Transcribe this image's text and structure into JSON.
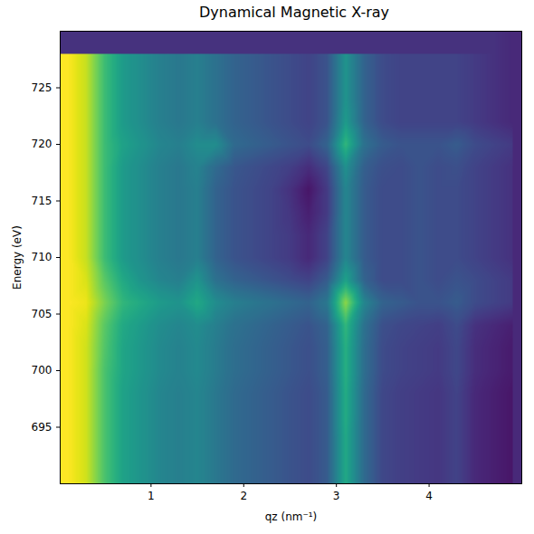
{
  "chart_data": {
    "type": "heatmap",
    "title": "Dynamical Magnetic X-ray",
    "x_label": "qz (nm⁻¹)",
    "y_label": "Energy (eV)",
    "xlim": [
      0.02,
      5.0
    ],
    "ylim": [
      690,
      730
    ],
    "xticks": [
      1,
      2,
      3,
      4
    ],
    "yticks": [
      695,
      700,
      705,
      710,
      715,
      720,
      725
    ],
    "color": "viridis",
    "zlim": [
      3,
      10
    ],
    "x": [
      0.1,
      0.3,
      0.5,
      0.7,
      0.9,
      1.1,
      1.3,
      1.5,
      1.7,
      1.9,
      2.1,
      2.3,
      2.5,
      2.7,
      2.9,
      3.1,
      3.3,
      3.5,
      3.7,
      3.9,
      4.1,
      4.3,
      4.5,
      4.7,
      4.9
    ],
    "y": [
      690,
      692,
      694,
      696,
      698,
      700,
      702,
      704,
      706,
      708,
      710,
      712,
      714,
      716,
      718,
      720,
      722,
      724,
      726,
      728
    ],
    "z": [
      [
        10,
        9.5,
        8,
        7,
        6.6,
        6.2,
        6,
        6.2,
        5.8,
        5.4,
        5.2,
        5,
        4.8,
        4.6,
        5,
        7.2,
        5.4,
        4.5,
        4.3,
        4.2,
        4.1,
        4.4,
        3.8,
        3.6,
        3.4
      ],
      [
        10,
        9.5,
        8,
        7,
        6.6,
        6.2,
        6,
        6.2,
        5.8,
        5.4,
        5.2,
        5,
        4.8,
        4.6,
        5,
        7.2,
        5.4,
        4.5,
        4.3,
        4.2,
        4.1,
        4.4,
        3.8,
        3.6,
        3.4
      ],
      [
        10,
        9.5,
        8,
        7,
        6.6,
        6.2,
        6,
        6.2,
        5.8,
        5.4,
        5.2,
        5,
        4.8,
        4.6,
        5,
        7.2,
        5.4,
        4.5,
        4.3,
        4.2,
        4.1,
        4.4,
        3.8,
        3.6,
        3.4
      ],
      [
        10,
        9.5,
        8,
        7,
        6.6,
        6.2,
        6,
        6.2,
        5.8,
        5.4,
        5.2,
        5,
        4.8,
        4.6,
        5,
        7.3,
        5.4,
        4.5,
        4.3,
        4.2,
        4.1,
        4.4,
        3.8,
        3.6,
        3.4
      ],
      [
        10,
        9.5,
        8,
        7,
        6.6,
        6.2,
        6,
        6.2,
        5.8,
        5.4,
        5.2,
        5,
        4.8,
        4.6,
        5,
        7.3,
        5.4,
        4.5,
        4.3,
        4.2,
        4.1,
        4.4,
        3.8,
        3.6,
        3.4
      ],
      [
        10,
        9.5,
        8,
        7.1,
        6.7,
        6.3,
        6.1,
        6.3,
        5.9,
        5.5,
        5.3,
        5.1,
        4.9,
        4.7,
        5.1,
        7.4,
        5.5,
        4.6,
        4.4,
        4.3,
        4.2,
        4.5,
        3.9,
        3.7,
        3.5
      ],
      [
        10,
        9.5,
        8.1,
        7.1,
        6.7,
        6.3,
        6.1,
        6.3,
        5.9,
        5.5,
        5.3,
        5.1,
        4.9,
        4.7,
        5.1,
        7.4,
        5.5,
        4.6,
        4.4,
        4.3,
        4.2,
        4.5,
        3.9,
        3.7,
        3.5
      ],
      [
        10,
        9.6,
        8.2,
        7.2,
        6.8,
        6.4,
        6.2,
        6.4,
        6,
        5.6,
        5.4,
        5.2,
        5,
        4.8,
        5.2,
        7.6,
        5.6,
        4.7,
        4.5,
        4.4,
        4.3,
        4.6,
        4,
        3.8,
        3.6
      ],
      [
        10,
        9.8,
        8.6,
        7.6,
        7.2,
        6.8,
        6.6,
        7.2,
        6.4,
        6,
        5.8,
        5.6,
        5.4,
        5.2,
        5.8,
        8.8,
        6.2,
        5.2,
        5,
        4.8,
        4.8,
        5,
        4.6,
        4.4,
        4.2
      ],
      [
        10,
        9.6,
        8.2,
        7.2,
        6.6,
        6.2,
        6,
        6.6,
        5.6,
        5.2,
        5,
        4.8,
        4.6,
        4.4,
        5,
        7,
        5.2,
        4.6,
        4.6,
        4.8,
        4.6,
        4.8,
        4.6,
        4.4,
        4.2
      ],
      [
        10,
        9.4,
        7.8,
        6.8,
        6.4,
        6,
        5.8,
        6,
        5.2,
        4.8,
        4.6,
        4.4,
        4.2,
        3.8,
        4.4,
        6.2,
        5,
        4.6,
        4.6,
        4.8,
        4.6,
        4.6,
        4.4,
        4.2,
        4
      ],
      [
        10,
        9.4,
        7.8,
        6.8,
        6.4,
        6,
        5.8,
        6,
        5.2,
        4.8,
        4.6,
        4.4,
        4.2,
        3.8,
        4.4,
        6.2,
        5,
        4.6,
        4.6,
        4.8,
        4.6,
        4.6,
        4.4,
        4.2,
        4
      ],
      [
        10,
        9.4,
        7.8,
        6.8,
        6.4,
        6,
        5.8,
        6,
        5.2,
        4.8,
        4.6,
        4.4,
        4.1,
        3.6,
        4.2,
        6.2,
        5,
        4.6,
        4.6,
        4.8,
        4.6,
        4.6,
        4.4,
        4.2,
        4
      ],
      [
        10,
        9.4,
        7.8,
        6.8,
        6.4,
        6,
        5.8,
        6,
        5.2,
        4.8,
        4.6,
        4.4,
        4,
        3.4,
        4.2,
        6.2,
        5,
        4.6,
        4.6,
        4.8,
        4.6,
        4.6,
        4.4,
        4.2,
        4
      ],
      [
        10,
        9.4,
        7.8,
        6.8,
        6.4,
        6,
        5.8,
        6.1,
        5.4,
        4.9,
        4.7,
        4.5,
        4.3,
        3.9,
        4.5,
        6.5,
        5.1,
        4.7,
        4.6,
        4.8,
        4.6,
        4.7,
        4.4,
        4.2,
        4
      ],
      [
        10,
        9.4,
        7.8,
        7,
        6.6,
        6.2,
        6,
        6.4,
        6.4,
        5.4,
        5.2,
        5,
        4.8,
        4.6,
        5.2,
        7.6,
        5.6,
        5,
        4.8,
        4.8,
        4.8,
        5,
        4.6,
        4.4,
        4.2
      ],
      [
        10,
        9.4,
        7.8,
        6.8,
        6.4,
        6,
        5.8,
        6,
        5.6,
        5.2,
        5,
        4.8,
        4.6,
        4.4,
        4.8,
        6.8,
        5.2,
        4.6,
        4.4,
        4.4,
        4.4,
        4.4,
        4.2,
        4,
        3.8
      ],
      [
        10,
        9.4,
        7.8,
        6.8,
        6.4,
        6,
        5.8,
        6,
        5.6,
        5.2,
        5,
        4.8,
        4.6,
        4.4,
        4.8,
        6.6,
        5.2,
        4.6,
        4.4,
        4.4,
        4.4,
        4.4,
        4.2,
        4,
        3.8
      ],
      [
        10,
        9.4,
        7.8,
        6.8,
        6.4,
        6,
        5.8,
        6,
        5.6,
        5.2,
        5,
        4.8,
        4.6,
        4.4,
        4.8,
        6.6,
        5.2,
        4.6,
        4.4,
        4.4,
        4.4,
        4.4,
        4.2,
        4,
        3.8
      ],
      [
        10,
        9.4,
        7.8,
        6.8,
        6.4,
        6,
        5.8,
        6,
        5.6,
        5.2,
        5,
        4.8,
        4.6,
        4.4,
        4.8,
        6.6,
        5.2,
        4.6,
        4.4,
        4.4,
        4.4,
        4.4,
        4.2,
        4,
        3.8
      ]
    ]
  }
}
